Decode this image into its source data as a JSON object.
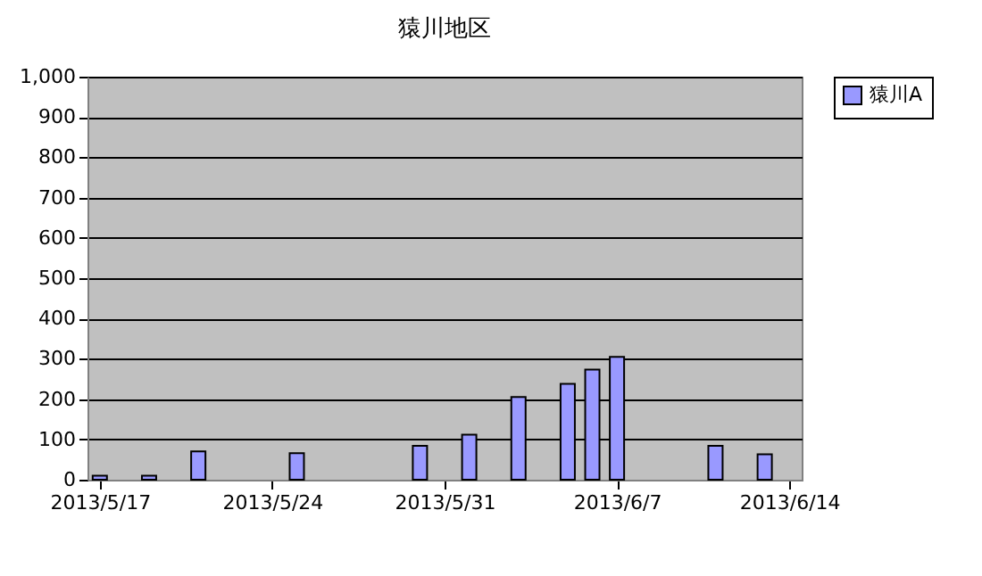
{
  "chart_data": {
    "type": "bar",
    "title": "猿川地区",
    "x": [
      "2013-05-17",
      "2013-05-19",
      "2013-05-21",
      "2013-05-25",
      "2013-05-30",
      "2013-06-01",
      "2013-06-03",
      "2013-06-05",
      "2013-06-06",
      "2013-06-07",
      "2013-06-11",
      "2013-06-13"
    ],
    "series": [
      {
        "name": "猿川A",
        "color": "#9999ff",
        "values": [
          10,
          10,
          70,
          66,
          84,
          112,
          205,
          238,
          273,
          305,
          84,
          63
        ]
      }
    ],
    "xlim": [
      "2013-05-16T12:00",
      "2013-06-14T12:00"
    ],
    "xticks": [
      {
        "value": "2013-05-17",
        "label": "2013/5/17"
      },
      {
        "value": "2013-05-24",
        "label": "2013/5/24"
      },
      {
        "value": "2013-05-31",
        "label": "2013/5/31"
      },
      {
        "value": "2013-06-07",
        "label": "2013/6/7"
      },
      {
        "value": "2013-06-14",
        "label": "2013/6/14"
      }
    ],
    "ylim": [
      0,
      1000
    ],
    "yticks": [
      0,
      100,
      200,
      300,
      400,
      500,
      600,
      700,
      800,
      900,
      {
        "value": 1000,
        "label": "1,000"
      }
    ],
    "grid": "y",
    "legend": "right"
  }
}
